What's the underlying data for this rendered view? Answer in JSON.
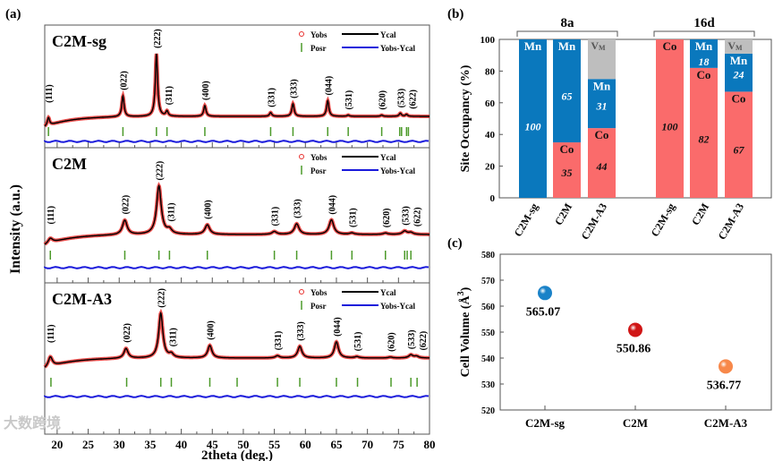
{
  "chart_data": [
    {
      "panel_label": "(a)",
      "type": "line",
      "xlabel": "2theta (deg.)",
      "ylabel": "Intensity (a.u.)",
      "xlim": [
        18,
        80
      ],
      "xticks": [
        20,
        25,
        30,
        35,
        40,
        45,
        50,
        55,
        60,
        65,
        70,
        75,
        80
      ],
      "legend": {
        "yobs": "Yobs",
        "ycal": "Ycal",
        "posr": "Posr",
        "diff": "Yobs-Ycal",
        "placement": "top-right"
      },
      "series_colors": {
        "yobs": "#e8302e",
        "ycal": "#000000",
        "posr": "#4c9a2a",
        "diff": "#1a1adb"
      },
      "samples": [
        {
          "name": "C2M-sg",
          "peak_width": 0.22,
          "peaks": [
            {
              "hkl": "(111)",
              "two_theta": 18.6,
              "rel_intensity": 0.13
            },
            {
              "hkl": "(022)",
              "two_theta": 30.6,
              "rel_intensity": 0.33
            },
            {
              "hkl": "(222)",
              "two_theta": 36.0,
              "rel_intensity": 1.0
            },
            {
              "hkl": "(311)",
              "two_theta": 37.7,
              "rel_intensity": 0.08
            },
            {
              "hkl": "(400)",
              "two_theta": 43.8,
              "rel_intensity": 0.17
            },
            {
              "hkl": "(331)",
              "two_theta": 54.4,
              "rel_intensity": 0.06
            },
            {
              "hkl": "(333)",
              "two_theta": 58.0,
              "rel_intensity": 0.2
            },
            {
              "hkl": "(044)",
              "two_theta": 63.6,
              "rel_intensity": 0.25
            },
            {
              "hkl": "(531)",
              "two_theta": 66.9,
              "rel_intensity": 0.02
            },
            {
              "hkl": "(620)",
              "two_theta": 72.3,
              "rel_intensity": 0.02
            },
            {
              "hkl": "(533)",
              "two_theta": 75.3,
              "rel_intensity": 0.05
            },
            {
              "hkl": "(622)",
              "two_theta": 76.3,
              "rel_intensity": 0.03
            }
          ],
          "posr_ticks": [
            18.6,
            30.6,
            36.0,
            37.7,
            43.8,
            54.4,
            58.0,
            63.6,
            66.9,
            72.3,
            75.2,
            75.5,
            76.3,
            76.6
          ]
        },
        {
          "name": "C2M",
          "peak_width": 0.45,
          "peaks": [
            {
              "hkl": "(111)",
              "two_theta": 18.9,
              "rel_intensity": 0.1
            },
            {
              "hkl": "(022)",
              "two_theta": 30.9,
              "rel_intensity": 0.3
            },
            {
              "hkl": "(222)",
              "two_theta": 36.4,
              "rel_intensity": 1.0
            },
            {
              "hkl": "(311)",
              "two_theta": 38.1,
              "rel_intensity": 0.09
            },
            {
              "hkl": "(400)",
              "two_theta": 44.2,
              "rel_intensity": 0.2
            },
            {
              "hkl": "(331)",
              "two_theta": 55.0,
              "rel_intensity": 0.06
            },
            {
              "hkl": "(333)",
              "two_theta": 58.6,
              "rel_intensity": 0.22
            },
            {
              "hkl": "(044)",
              "two_theta": 64.2,
              "rel_intensity": 0.3
            },
            {
              "hkl": "(531)",
              "two_theta": 67.5,
              "rel_intensity": 0.03
            },
            {
              "hkl": "(620)",
              "two_theta": 72.9,
              "rel_intensity": 0.03
            },
            {
              "hkl": "(533)",
              "two_theta": 76.0,
              "rel_intensity": 0.07
            },
            {
              "hkl": "(622)",
              "two_theta": 77.0,
              "rel_intensity": 0.04
            }
          ],
          "posr_ticks": [
            18.9,
            30.9,
            36.4,
            38.1,
            44.2,
            55.0,
            58.6,
            64.2,
            67.5,
            72.9,
            76.0,
            76.4,
            77.0
          ]
        },
        {
          "name": "C2M-A3",
          "peak_width": 0.4,
          "peaks": [
            {
              "hkl": "(111)",
              "two_theta": 18.9,
              "rel_intensity": 0.22
            },
            {
              "hkl": "(022)",
              "two_theta": 31.1,
              "rel_intensity": 0.22
            },
            {
              "hkl": "(222)",
              "two_theta": 36.7,
              "rel_intensity": 1.0
            },
            {
              "hkl": "(311)",
              "two_theta": 38.4,
              "rel_intensity": 0.08
            },
            {
              "hkl": "(400)",
              "two_theta": 44.6,
              "rel_intensity": 0.28
            },
            {
              "hkl": "(331)",
              "two_theta": 55.5,
              "rel_intensity": 0.05
            },
            {
              "hkl": "(333)",
              "two_theta": 59.1,
              "rel_intensity": 0.26
            },
            {
              "hkl": "(044)",
              "two_theta": 65.0,
              "rel_intensity": 0.36
            },
            {
              "hkl": "(531)",
              "two_theta": 68.3,
              "rel_intensity": 0.03
            },
            {
              "hkl": "(620)",
              "two_theta": 73.7,
              "rel_intensity": 0.02
            },
            {
              "hkl": "(533)",
              "two_theta": 77.0,
              "rel_intensity": 0.07
            },
            {
              "hkl": "(622)",
              "two_theta": 77.9,
              "rel_intensity": 0.04
            }
          ],
          "posr_ticks": [
            19.0,
            31.2,
            36.7,
            38.4,
            44.6,
            49.0,
            55.5,
            59.1,
            65.0,
            68.4,
            73.8,
            77.0,
            78.0
          ]
        }
      ]
    },
    {
      "panel_label": "(b)",
      "type": "bar",
      "stacked": true,
      "ylabel": "Site Occupancy (%)",
      "ylim": [
        0,
        100
      ],
      "yticks": [
        0,
        20,
        40,
        60,
        80,
        100
      ],
      "colors": {
        "Co": "#fa6b6b",
        "Mn": "#0a78bd",
        "VM": "#bebebe"
      },
      "groups": [
        {
          "site": "8a",
          "bars": [
            {
              "category": "C2M-sg",
              "segments": [
                {
                  "element": "Mn",
                  "value": 100,
                  "label": "100"
                }
              ]
            },
            {
              "category": "C2M",
              "segments": [
                {
                  "element": "Co",
                  "value": 35,
                  "label": "35"
                },
                {
                  "element": "Mn",
                  "value": 65,
                  "label": "65"
                }
              ]
            },
            {
              "category": "C2M-A3",
              "segments": [
                {
                  "element": "Co",
                  "value": 44,
                  "label": "44"
                },
                {
                  "element": "Mn",
                  "value": 31,
                  "label": "31"
                },
                {
                  "element": "VM",
                  "value": 25,
                  "label": ""
                }
              ]
            }
          ]
        },
        {
          "site": "16d",
          "bars": [
            {
              "category": "C2M-sg",
              "segments": [
                {
                  "element": "Co",
                  "value": 100,
                  "label": "100"
                }
              ]
            },
            {
              "category": "C2M",
              "segments": [
                {
                  "element": "Co",
                  "value": 82,
                  "label": "82"
                },
                {
                  "element": "Mn",
                  "value": 18,
                  "label": "18"
                }
              ]
            },
            {
              "category": "C2M-A3",
              "segments": [
                {
                  "element": "Co",
                  "value": 67,
                  "label": "67"
                },
                {
                  "element": "Mn",
                  "value": 24,
                  "label": "24"
                },
                {
                  "element": "VM",
                  "value": 9,
                  "label": ""
                }
              ]
            }
          ]
        }
      ],
      "element_labels": {
        "Co": "Co",
        "Mn": "Mn",
        "VM": "V",
        "VM_sub": "M"
      }
    },
    {
      "panel_label": "(c)",
      "type": "scatter",
      "ylabel": "Cell Volume (Å",
      "ylabel_sup": "3",
      "ylabel_end": ")",
      "ylim": [
        520,
        580
      ],
      "yticks": [
        520,
        530,
        540,
        550,
        560,
        570,
        580
      ],
      "categories": [
        "C2M-sg",
        "C2M",
        "C2M-A3"
      ],
      "values": [
        565.07,
        550.86,
        536.77
      ],
      "labels": [
        "565.07",
        "550.86",
        "536.77"
      ],
      "colors": [
        "#1a82c8",
        "#d01616",
        "#f7884a"
      ]
    }
  ],
  "watermark": "大数跨境"
}
